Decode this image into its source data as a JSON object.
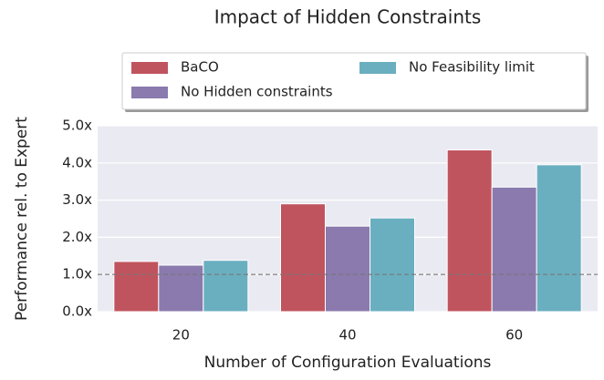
{
  "chart_data": {
    "type": "bar",
    "title": "Impact of Hidden Constraints",
    "x_label": "Number of Configuration Evaluations",
    "y_label": "Performance rel. to Expert",
    "categories": [
      "20",
      "40",
      "60"
    ],
    "series": [
      {
        "name": "BaCO",
        "color": "#c0545e",
        "values": [
          1.35,
          2.9,
          4.35
        ]
      },
      {
        "name": "No Hidden constraints",
        "color": "#8a7aae",
        "values": [
          1.25,
          2.3,
          3.35
        ]
      },
      {
        "name": "No Feasibility limit",
        "color": "#6aafc0",
        "values": [
          1.38,
          2.52,
          3.95
        ]
      }
    ],
    "ylim": [
      0,
      5
    ],
    "yticks": [
      {
        "value": 0,
        "label": "0.0x"
      },
      {
        "value": 1,
        "label": "1.0x"
      },
      {
        "value": 2,
        "label": "2.0x"
      },
      {
        "value": 3,
        "label": "3.0x"
      },
      {
        "value": 4,
        "label": "4.0x"
      },
      {
        "value": 5,
        "label": "5.0x"
      }
    ],
    "reference_line": 1,
    "grid": true,
    "legend_loc": "upper center"
  }
}
